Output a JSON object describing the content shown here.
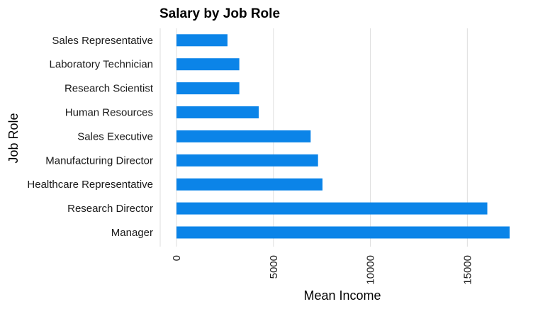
{
  "chart_data": {
    "type": "bar",
    "orientation": "horizontal",
    "title": "Salary by Job Role",
    "xlabel": "Mean Income",
    "ylabel": "Job Role",
    "categories": [
      "Manager",
      "Research Director",
      "Healthcare Representative",
      "Manufacturing Director",
      "Sales Executive",
      "Human Resources",
      "Research Scientist",
      "Laboratory Technician",
      "Sales Representative"
    ],
    "values": [
      17180,
      16030,
      7530,
      7300,
      6920,
      4240,
      3240,
      3240,
      2630
    ],
    "xlim": [
      0,
      17180
    ],
    "xticks": [
      0,
      5000,
      10000,
      15000
    ],
    "grid": true,
    "bar_color": "#0b84e8"
  }
}
